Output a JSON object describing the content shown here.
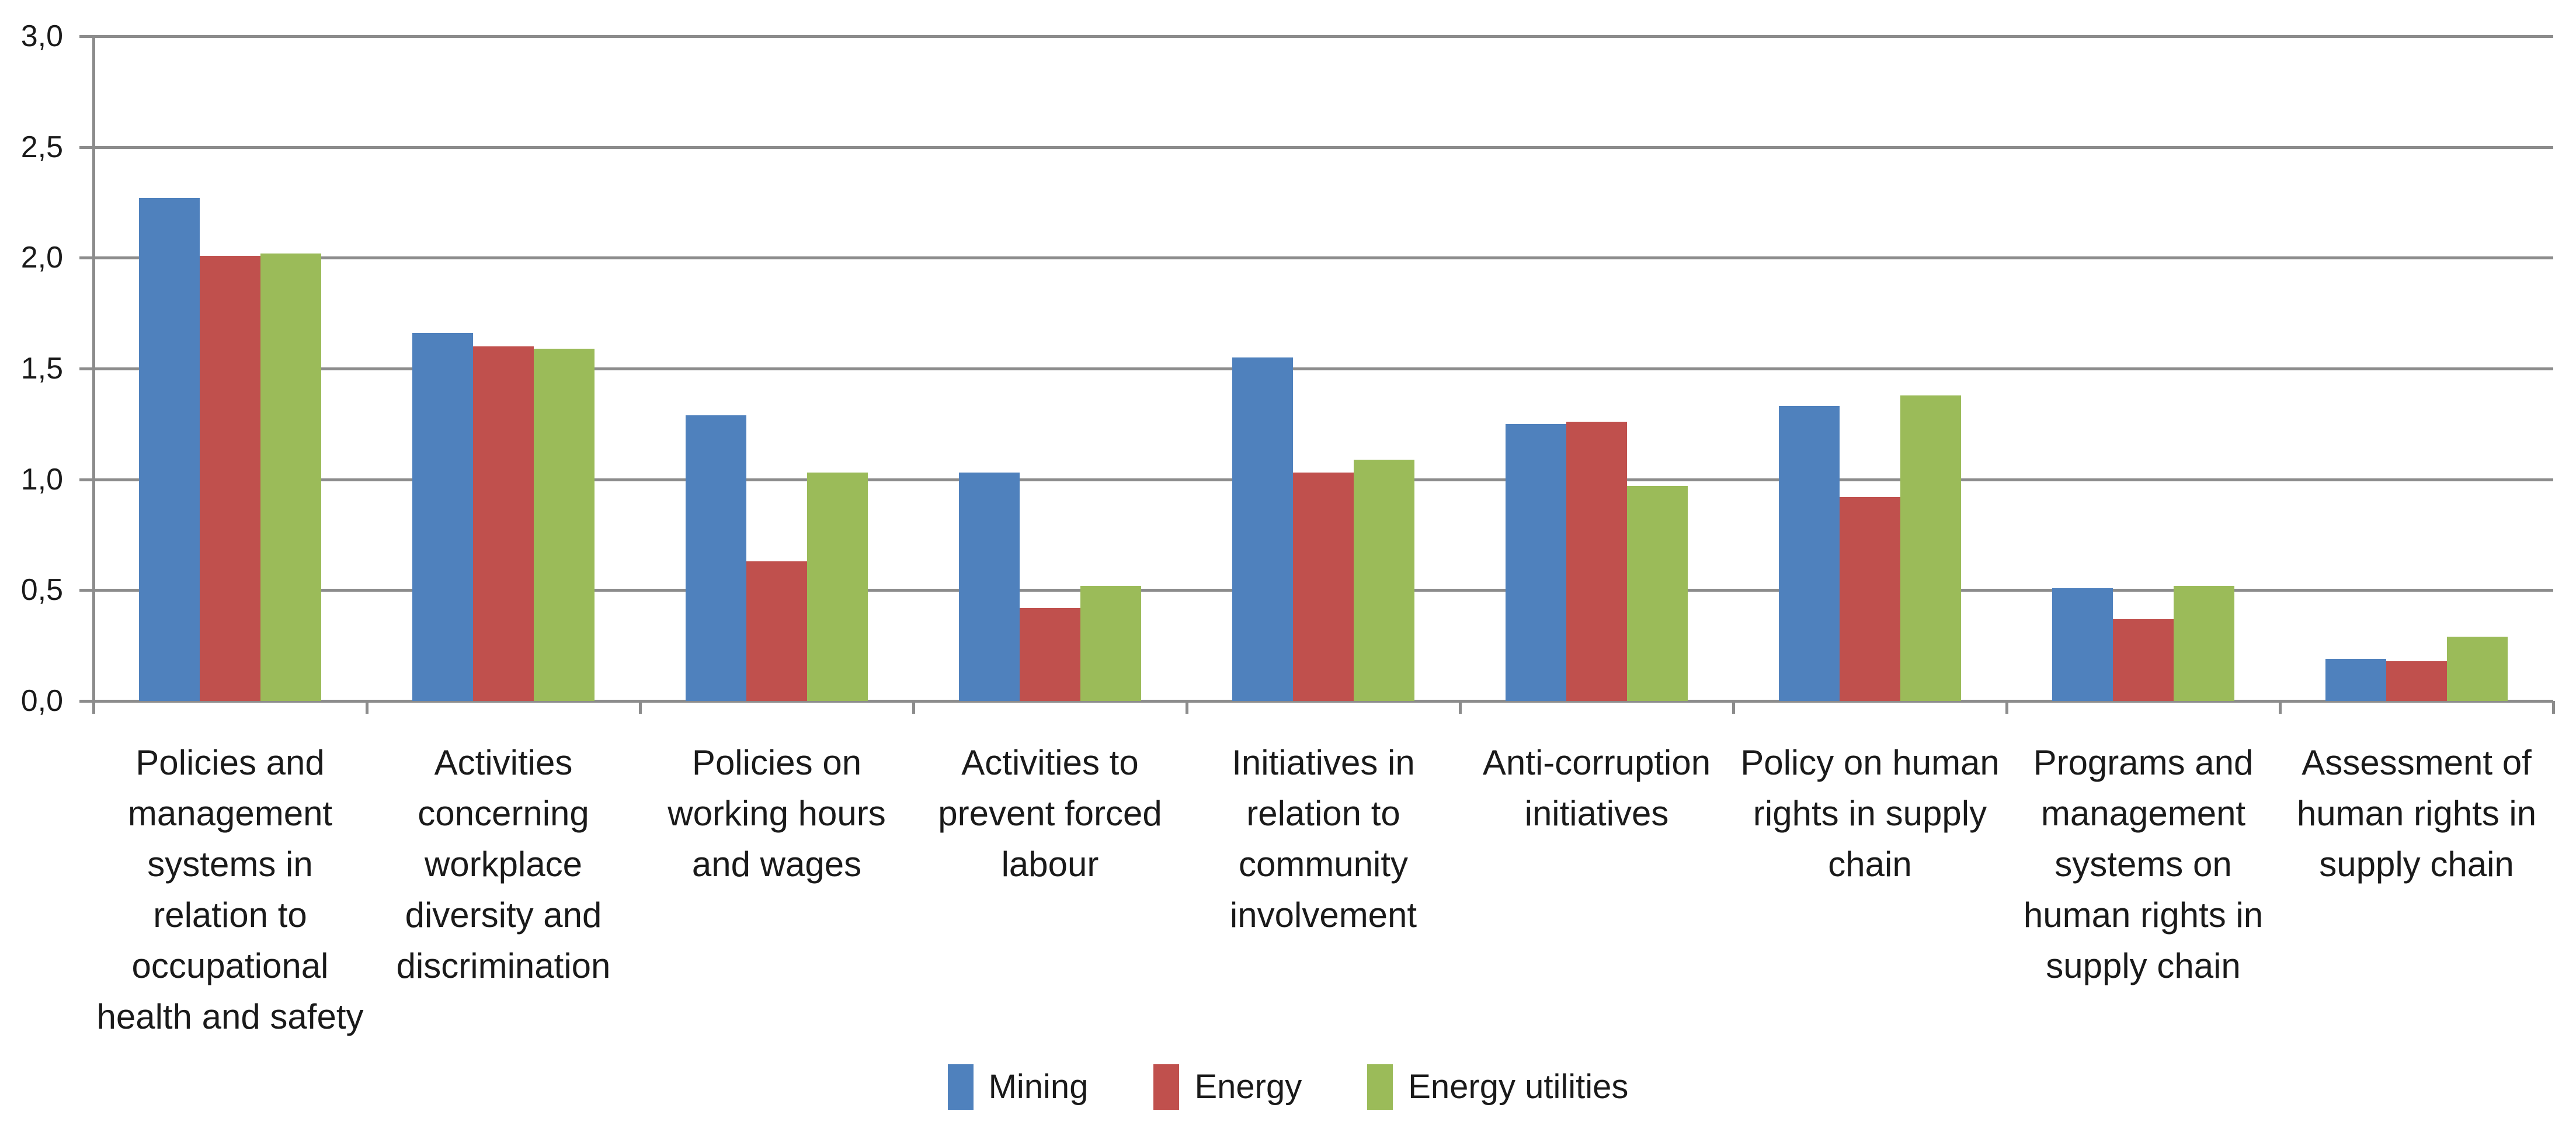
{
  "chart_data": {
    "type": "bar",
    "title": "",
    "xlabel": "",
    "ylabel": "",
    "categories": [
      "Policies and management systems in relation to occupational health and safety",
      "Activities concerning workplace diversity and discrimination",
      "Policies on working hours and wages",
      "Activities to prevent forced labour",
      "Initiatives in relation to community involvement",
      "Anti-corruption initiatives",
      "Policy on human rights in supply chain",
      "Programs and management systems on human rights in supply chain",
      "Assessment of human rights in supply chain"
    ],
    "series": [
      {
        "name": "Mining",
        "color": "#4F81BD",
        "values": [
          2.27,
          1.66,
          1.29,
          1.03,
          1.55,
          1.25,
          1.33,
          0.51,
          0.19
        ]
      },
      {
        "name": "Energy",
        "color": "#C0504D",
        "values": [
          2.01,
          1.6,
          0.63,
          0.42,
          1.03,
          1.26,
          0.92,
          0.37,
          0.18
        ]
      },
      {
        "name": "Energy utilities",
        "color": "#9BBB59",
        "values": [
          2.02,
          1.59,
          1.03,
          0.52,
          1.09,
          0.97,
          1.38,
          0.52,
          0.29
        ]
      }
    ],
    "ylim": [
      0,
      3.0
    ],
    "ytick_step": 0.5,
    "ytick_labels": [
      "3,0",
      "2,5",
      "2,0",
      "1,5",
      "1,0",
      "0,5",
      "0,0"
    ],
    "decimal_separator": ",",
    "grid": "horizontal",
    "gridline_color": "#8C8C8C",
    "axis_color": "#8C8C8C",
    "text_color": "#1A1A1A",
    "legend_position": "bottom"
  }
}
